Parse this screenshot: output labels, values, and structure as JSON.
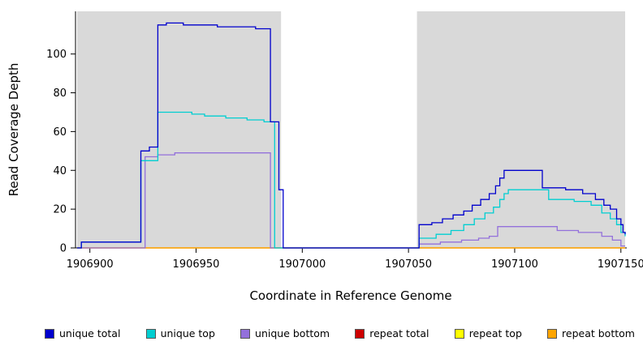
{
  "chart_data": {
    "type": "line",
    "variant": "step-coverage-plot",
    "title": "",
    "xlabel": "Coordinate in Reference Genome",
    "ylabel": "Read Coverage Depth",
    "xlim": [
      1906894,
      1907152
    ],
    "ylim": [
      0,
      122
    ],
    "x_ticks": [
      1906900,
      1906950,
      1907000,
      1907050,
      1907100,
      1907150
    ],
    "y_ticks": [
      0,
      20,
      40,
      60,
      80,
      100
    ],
    "grid": false,
    "shaded_regions": {
      "color": "#d9d9d9",
      "ranges": [
        [
          1906894,
          1906990
        ],
        [
          1907054,
          1907152
        ]
      ]
    },
    "series": [
      {
        "name": "repeat total",
        "color": "#CD0000",
        "points": [
          [
            1906894,
            0
          ],
          [
            1907152,
            0
          ]
        ]
      },
      {
        "name": "repeat top",
        "color": "#FFFF00",
        "points": [
          [
            1906894,
            0
          ],
          [
            1907152,
            0
          ]
        ]
      },
      {
        "name": "repeat bottom",
        "color": "#FFA500",
        "points": [
          [
            1906894,
            0
          ],
          [
            1907152,
            0
          ]
        ]
      },
      {
        "name": "unique bottom",
        "color": "#9370DB",
        "points": [
          [
            1906894,
            0
          ],
          [
            1906926,
            47
          ],
          [
            1906932,
            48
          ],
          [
            1906940,
            49
          ],
          [
            1906985,
            0
          ],
          [
            1907055,
            2
          ],
          [
            1907065,
            3
          ],
          [
            1907075,
            4
          ],
          [
            1907083,
            5
          ],
          [
            1907088,
            6
          ],
          [
            1907092,
            11
          ],
          [
            1907120,
            9
          ],
          [
            1907130,
            8
          ],
          [
            1907141,
            6
          ],
          [
            1907146,
            4
          ],
          [
            1907150,
            1
          ],
          [
            1907152,
            1
          ]
        ]
      },
      {
        "name": "unique top",
        "color": "#00CED1",
        "points": [
          [
            1906894,
            0
          ],
          [
            1906896,
            3
          ],
          [
            1906924,
            45
          ],
          [
            1906932,
            70
          ],
          [
            1906948,
            69
          ],
          [
            1906954,
            68
          ],
          [
            1906964,
            67
          ],
          [
            1906974,
            66
          ],
          [
            1906982,
            65
          ],
          [
            1906987,
            0
          ],
          [
            1907055,
            5
          ],
          [
            1907063,
            7
          ],
          [
            1907070,
            9
          ],
          [
            1907076,
            12
          ],
          [
            1907081,
            15
          ],
          [
            1907086,
            18
          ],
          [
            1907090,
            21
          ],
          [
            1907093,
            25
          ],
          [
            1907095,
            28
          ],
          [
            1907097,
            30
          ],
          [
            1907116,
            25
          ],
          [
            1907128,
            24
          ],
          [
            1907136,
            22
          ],
          [
            1907141,
            18
          ],
          [
            1907145,
            15
          ],
          [
            1907148,
            12
          ],
          [
            1907150,
            8
          ],
          [
            1907152,
            6
          ]
        ]
      },
      {
        "name": "unique total",
        "color": "#0000CD",
        "points": [
          [
            1906894,
            0
          ],
          [
            1906896,
            3
          ],
          [
            1906924,
            50
          ],
          [
            1906928,
            52
          ],
          [
            1906932,
            115
          ],
          [
            1906936,
            116
          ],
          [
            1906944,
            115
          ],
          [
            1906960,
            114
          ],
          [
            1906978,
            113
          ],
          [
            1906985,
            65
          ],
          [
            1906989,
            30
          ],
          [
            1906991,
            0
          ],
          [
            1907055,
            12
          ],
          [
            1907061,
            13
          ],
          [
            1907066,
            15
          ],
          [
            1907071,
            17
          ],
          [
            1907076,
            19
          ],
          [
            1907080,
            22
          ],
          [
            1907084,
            25
          ],
          [
            1907088,
            28
          ],
          [
            1907091,
            32
          ],
          [
            1907093,
            36
          ],
          [
            1907095,
            40
          ],
          [
            1907113,
            31
          ],
          [
            1907124,
            30
          ],
          [
            1907132,
            28
          ],
          [
            1907138,
            25
          ],
          [
            1907142,
            22
          ],
          [
            1907145,
            20
          ],
          [
            1907148,
            15
          ],
          [
            1907150,
            12
          ],
          [
            1907151,
            8
          ],
          [
            1907152,
            7
          ]
        ]
      }
    ]
  },
  "legend": {
    "position": "bottom",
    "items": [
      {
        "label": "unique total",
        "color": "#0000CD"
      },
      {
        "label": "unique top",
        "color": "#00CED1"
      },
      {
        "label": "unique bottom",
        "color": "#9370DB"
      },
      {
        "label": "repeat total",
        "color": "#CD0000"
      },
      {
        "label": "repeat top",
        "color": "#FFFF00"
      },
      {
        "label": "repeat bottom",
        "color": "#FFA500"
      }
    ]
  }
}
